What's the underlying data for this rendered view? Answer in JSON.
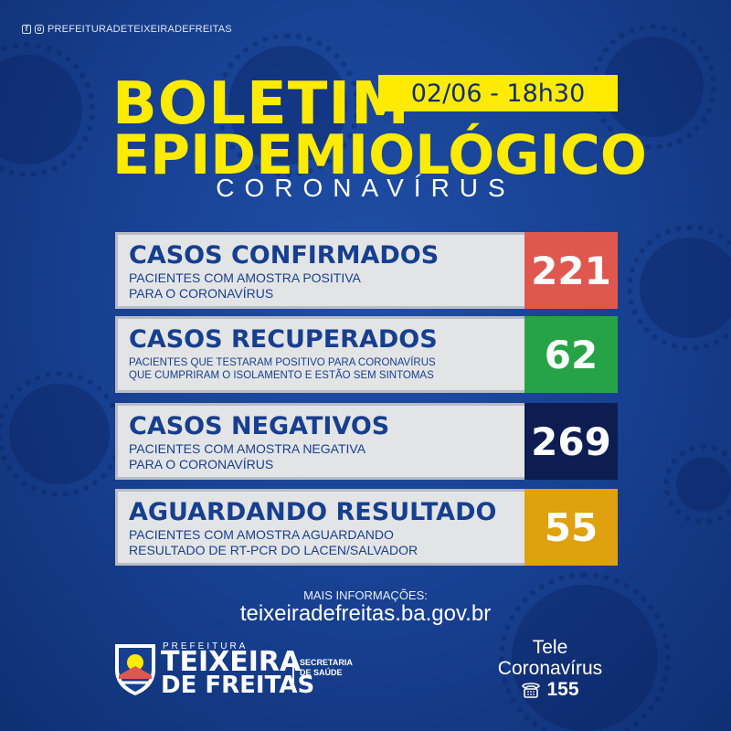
{
  "social": {
    "handle": "PREFEITURADETEIXEIRADEFREITAS",
    "icons": [
      "facebook-icon",
      "instagram-icon"
    ]
  },
  "header": {
    "title_line1": "BOLETIM",
    "title_line2": "EPIDEMIOLÓGICO",
    "subtitle": "CORONAVÍRUS",
    "date": "02/06 - 18h30"
  },
  "stats": [
    {
      "title": "CASOS CONFIRMADOS",
      "desc1": "PACIENTES COM AMOSTRA POSITIVA",
      "desc2": "PARA O CORONAVÍRUS",
      "value": "221",
      "color": "#e0574f"
    },
    {
      "title": "CASOS RECUPERADOS",
      "desc1": "PACIENTES QUE TESTARAM POSITIVO PARA CORONAVÍRUS",
      "desc2": "QUE CUMPRIRAM O ISOLAMENTO E ESTÃO SEM SINTOMAS",
      "value": "62",
      "color": "#27a347"
    },
    {
      "title": "CASOS NEGATIVOS",
      "desc1": "PACIENTES COM AMOSTRA NEGATIVA",
      "desc2": "PARA O CORONAVÍRUS",
      "value": "269",
      "color": "#0d1d52"
    },
    {
      "title": "AGUARDANDO RESULTADO",
      "desc1": "PACIENTES COM AMOSTRA AGUARDANDO",
      "desc2": "RESULTADO DE RT-PCR DO LACEN/SALVADOR",
      "value": "55",
      "color": "#e0a10e"
    }
  ],
  "footer": {
    "more_info": "MAIS INFORMAÇÕES:",
    "website": "teixeiradefreitas.ba.gov.br",
    "prefeitura": "PREFEITURA",
    "city_line1": "TEIXEIRA",
    "city_line2": "DE FREITAS",
    "secretaria_line1": "SECRETARIA",
    "secretaria_line2": "DE SAÚDE",
    "tele_line1": "Tele",
    "tele_line2": "Coronavírus",
    "tele_number": "155"
  },
  "colors": {
    "background": "#173f8f",
    "accent": "#ffeb00",
    "text_blue": "#173f8f"
  }
}
